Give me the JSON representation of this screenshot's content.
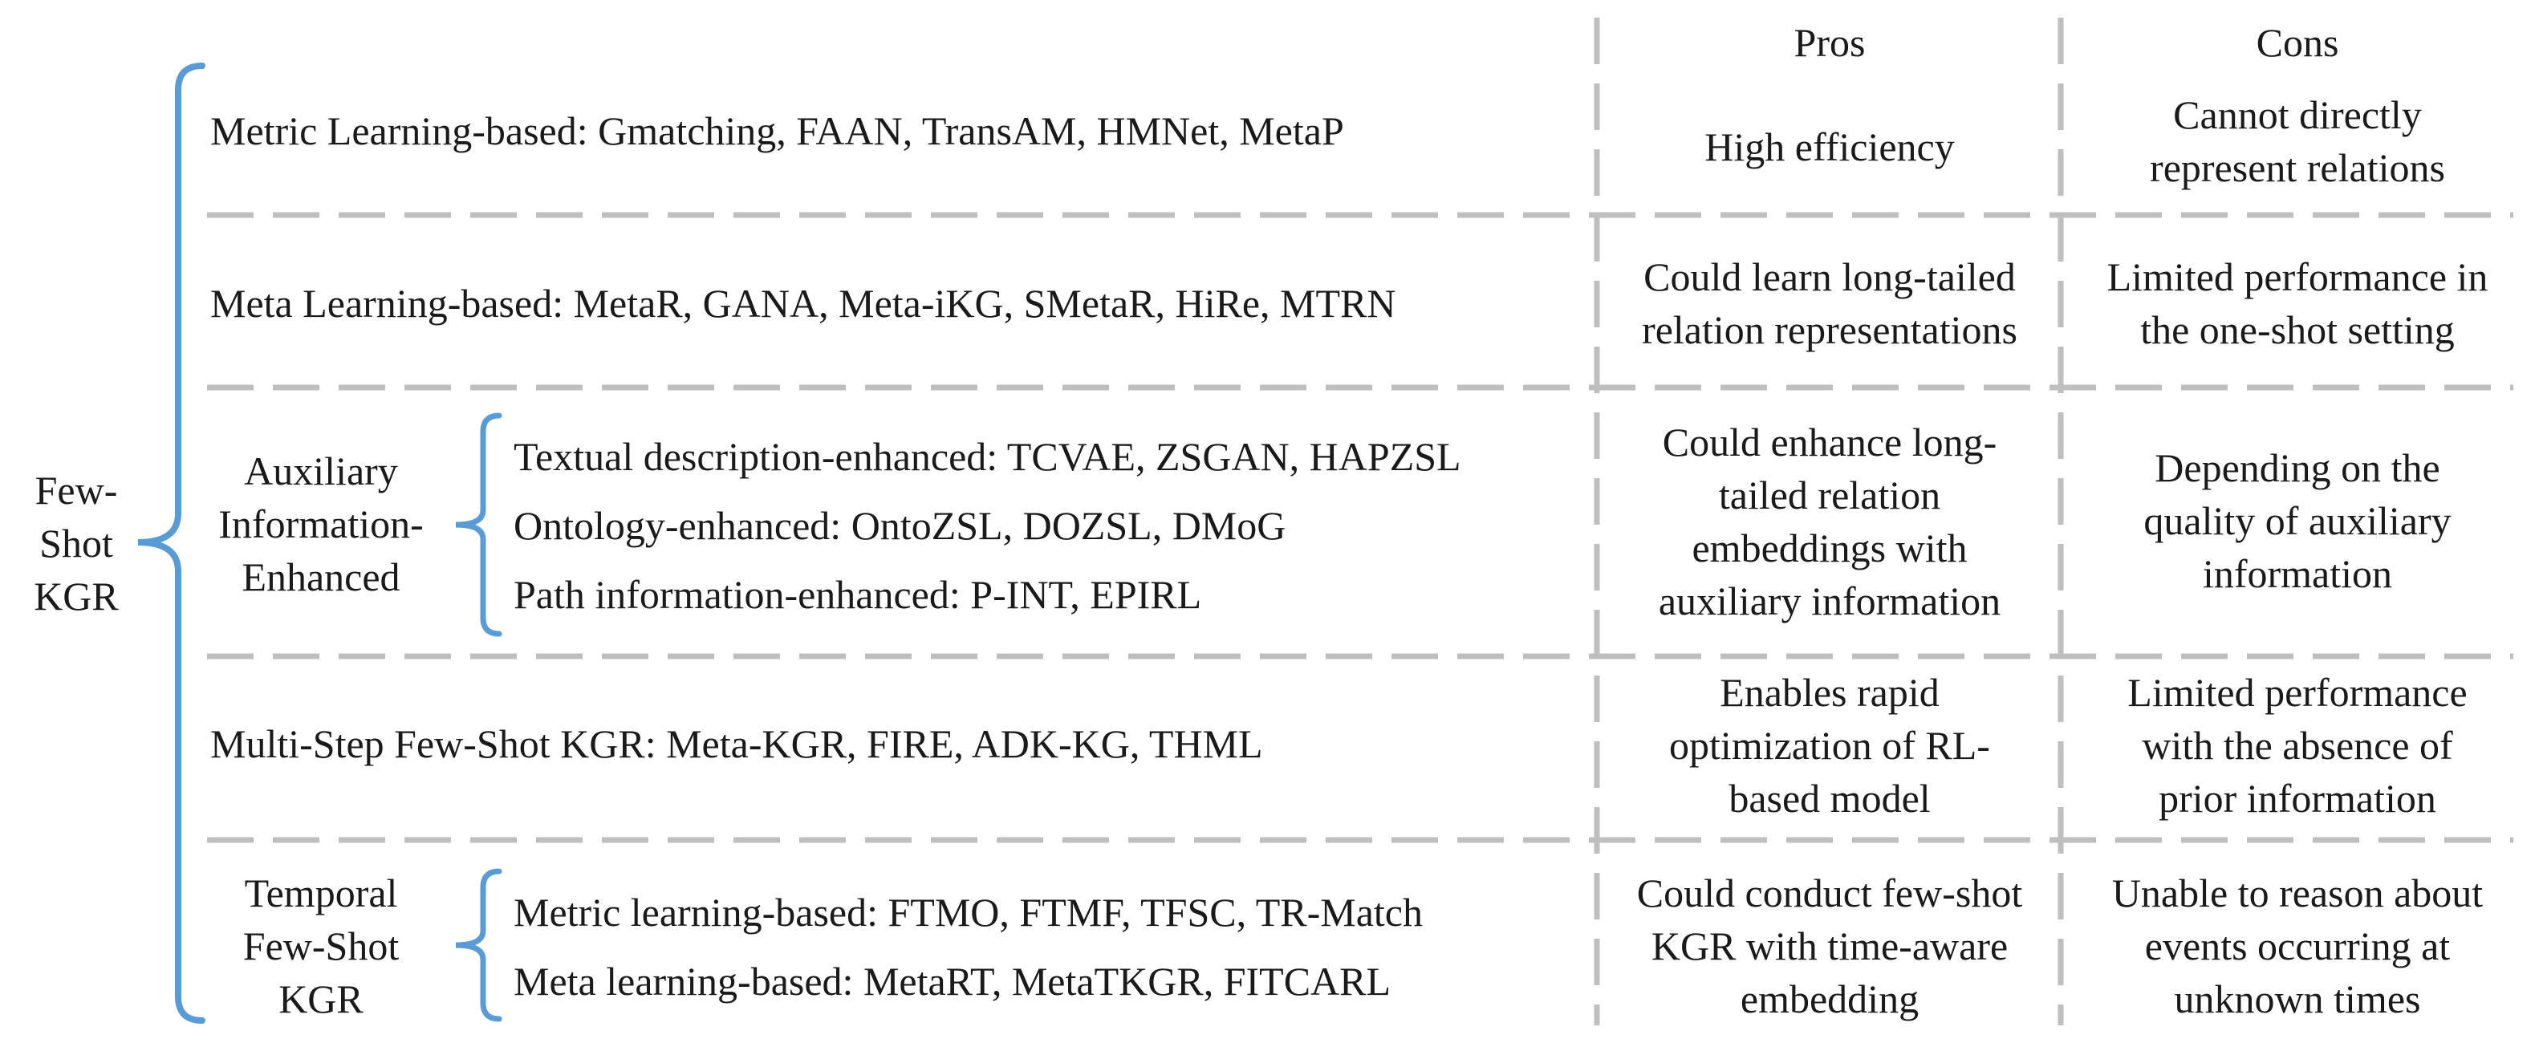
{
  "root": {
    "lines": [
      "Few-",
      "Shot",
      "KGR"
    ]
  },
  "headers": {
    "pros": "Pros",
    "cons": "Cons"
  },
  "rows": [
    {
      "label": "Metric Learning-based: Gmatching, FAAN, TransAM, HMNet, MetaP",
      "pros": [
        "High efficiency"
      ],
      "cons": [
        "Cannot directly",
        "represent relations"
      ]
    },
    {
      "label": "Meta Learning-based: MetaR, GANA, Meta-iKG, SMetaR, HiRe, MTRN",
      "pros": [
        "Could learn long-tailed",
        "relation representations"
      ],
      "cons": [
        "Limited performance in",
        "the one-shot setting"
      ]
    },
    {
      "group": [
        "Auxiliary",
        "Information-",
        "Enhanced"
      ],
      "items": [
        "Textual description-enhanced: TCVAE, ZSGAN, HAPZSL",
        "Ontology-enhanced: OntoZSL, DOZSL, DMoG",
        "Path information-enhanced: P-INT, EPIRL"
      ],
      "pros": [
        "Could enhance long-",
        "tailed relation",
        "embeddings with",
        "auxiliary information"
      ],
      "cons": [
        "Depending on the",
        "quality of auxiliary",
        "information"
      ]
    },
    {
      "label": "Multi-Step Few-Shot KGR: Meta-KGR, FIRE, ADK-KG, THML",
      "pros": [
        "Enables rapid",
        "optimization of RL-",
        "based model"
      ],
      "cons": [
        "Limited performance",
        "with the absence of",
        "prior information"
      ]
    },
    {
      "group": [
        "Temporal",
        "Few-Shot",
        "KGR"
      ],
      "items": [
        "Metric learning-based: FTMO, FTMF, TFSC, TR-Match",
        "Meta learning-based: MetaRT, MetaTKGR, FITCARL"
      ],
      "pros": [
        "Could conduct few-shot",
        "KGR with time-aware",
        "embedding"
      ],
      "cons": [
        "Unable to reason about",
        "events occurring at",
        "unknown times"
      ]
    }
  ],
  "colors": {
    "brace": "#5b9bd5",
    "divider": "#bfbfbf",
    "text": "#1a1a1a"
  }
}
